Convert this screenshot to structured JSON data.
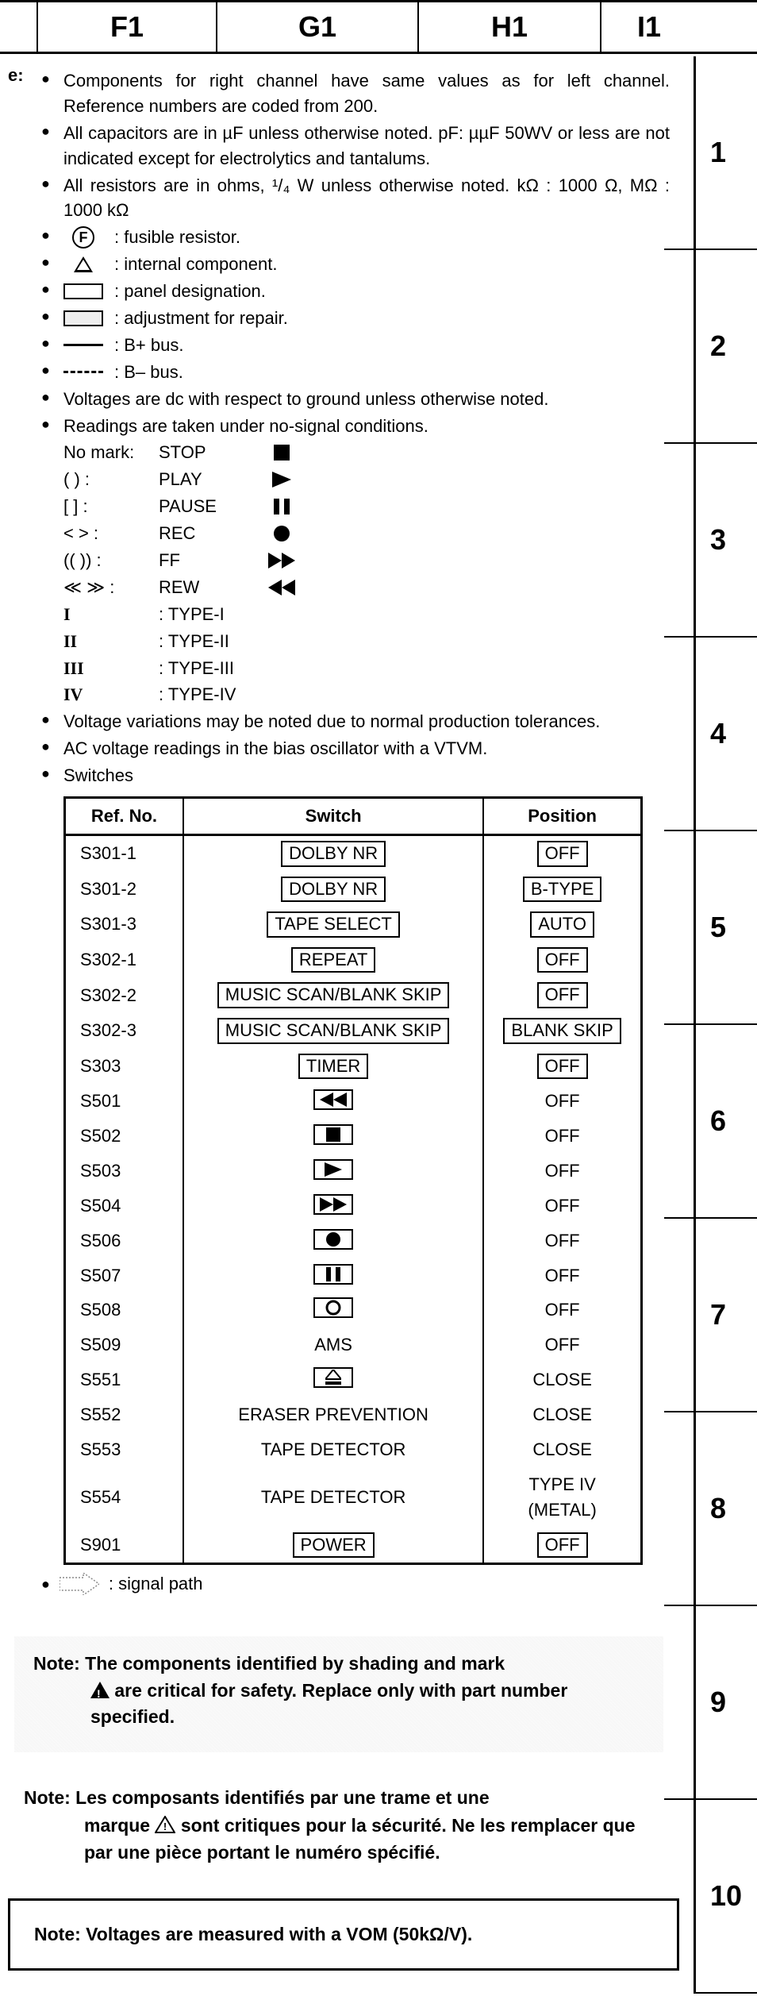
{
  "header": {
    "F": "F1",
    "G": "G1",
    "H": "H1",
    "I": "I1"
  },
  "ruler": [
    "1",
    "2",
    "3",
    "4",
    "5",
    "6",
    "7",
    "8",
    "9",
    "10"
  ],
  "notePrefix": "e:",
  "bullets": {
    "components": "Components for right channel have same values as for left channel. Reference numbers are coded from 200.",
    "capacitors": "All capacitors are in µF unless otherwise noted. pF: µµF 50WV or less are not indicated except for electrolytics and tantalums.",
    "resistors": "All resistors are in ohms, ¹/₄ W unless otherwise noted. kΩ : 1000 Ω, MΩ : 1000 kΩ",
    "fusible": ": fusible resistor.",
    "internal": ": internal component.",
    "panel": ": panel designation.",
    "adjust": ": adjustment for repair.",
    "bplus": ": B+ bus.",
    "bminus": ": B– bus.",
    "voltages": "Voltages are dc with respect to ground unless otherwise noted.",
    "readingsIntro": "Readings are taken under no-signal conditions.",
    "voltageVar": "Voltage variations may be noted due to normal production tolerances.",
    "acVoltage": "AC voltage readings in the bias oscillator with a VTVM.",
    "switches": "Switches",
    "signalPath": ": signal path"
  },
  "readings": {
    "noMark": {
      "mark": "No mark:",
      "label": "STOP"
    },
    "play": {
      "mark": "(      ) :",
      "label": "PLAY"
    },
    "pause": {
      "mark": "[      ] :",
      "label": "PAUSE"
    },
    "rec": {
      "mark": "<   > :",
      "label": "REC"
    },
    "ff": {
      "mark": "((    )) :",
      "label": "FF"
    },
    "rew": {
      "mark": "≪  ≫ :",
      "label": "REW"
    },
    "t1": {
      "mark": "I",
      "label": ": TYPE-I"
    },
    "t2": {
      "mark": "II",
      "label": ": TYPE-II"
    },
    "t3": {
      "mark": "III",
      "label": ": TYPE-III"
    },
    "t4": {
      "mark": "IV",
      "label": ": TYPE-IV"
    }
  },
  "table": {
    "headers": {
      "ref": "Ref. No.",
      "switch": "Switch",
      "position": "Position"
    },
    "rows": [
      {
        "ref": "S301-1",
        "switch": "DOLBY NR",
        "switchBoxed": true,
        "pos": "OFF",
        "posBoxed": true
      },
      {
        "ref": "S301-2",
        "switch": "DOLBY NR",
        "switchBoxed": true,
        "pos": "B-TYPE",
        "posBoxed": true
      },
      {
        "ref": "S301-3",
        "switch": "TAPE SELECT",
        "switchBoxed": true,
        "pos": "AUTO",
        "posBoxed": true
      },
      {
        "ref": "S302-1",
        "switch": "REPEAT",
        "switchBoxed": true,
        "pos": "OFF",
        "posBoxed": true
      },
      {
        "ref": "S302-2",
        "switch": "MUSIC SCAN/BLANK SKIP",
        "switchBoxed": true,
        "pos": "OFF",
        "posBoxed": true
      },
      {
        "ref": "S302-3",
        "switch": "MUSIC SCAN/BLANK SKIP",
        "switchBoxed": true,
        "pos": "BLANK SKIP",
        "posBoxed": true
      },
      {
        "ref": "S303",
        "switch": "TIMER",
        "switchBoxed": true,
        "pos": "OFF",
        "posBoxed": true
      },
      {
        "ref": "S501",
        "icon": "rew",
        "pos": "OFF",
        "posBoxed": false
      },
      {
        "ref": "S502",
        "icon": "stop",
        "pos": "OFF",
        "posBoxed": false
      },
      {
        "ref": "S503",
        "icon": "play",
        "pos": "OFF",
        "posBoxed": false
      },
      {
        "ref": "S504",
        "icon": "ff",
        "pos": "OFF",
        "posBoxed": false
      },
      {
        "ref": "S506",
        "icon": "rec",
        "pos": "OFF",
        "posBoxed": false
      },
      {
        "ref": "S507",
        "icon": "pause",
        "pos": "OFF",
        "posBoxed": false
      },
      {
        "ref": "S508",
        "icon": "circle",
        "pos": "OFF",
        "posBoxed": false
      },
      {
        "ref": "S509",
        "switch": "AMS",
        "switchBoxed": false,
        "pos": "OFF",
        "posBoxed": false
      },
      {
        "ref": "S551",
        "icon": "eject",
        "pos": "CLOSE",
        "posBoxed": false
      },
      {
        "ref": "S552",
        "switch": "ERASER PREVENTION",
        "switchBoxed": false,
        "pos": "CLOSE",
        "posBoxed": false
      },
      {
        "ref": "S553",
        "switch": "TAPE DETECTOR",
        "switchBoxed": false,
        "pos": "CLOSE",
        "posBoxed": false
      },
      {
        "ref": "S554",
        "switch": "TAPE DETECTOR",
        "switchBoxed": false,
        "pos": "TYPE IV (METAL)",
        "posBoxed": false
      },
      {
        "ref": "S901",
        "switch": "POWER",
        "switchBoxed": true,
        "pos": "OFF",
        "posBoxed": true
      }
    ]
  },
  "safetyNote": {
    "line1": "Note: The components identified by shading and mark",
    "line2": "are critical for safety.   Replace only with part number specified."
  },
  "frenchNote": {
    "line1": "Note: Les composants identifiés par une trame et une",
    "line2": "marque",
    "line3": "sont critiques pour la sécurité.  Ne les remplacer que par une pièce portant le numéro spécifié."
  },
  "vomNote": "Note:  Voltages are measured with a VOM (50kΩ/V).",
  "rulerHeights": [
    244,
    244,
    244,
    244,
    244,
    244,
    244,
    244,
    244,
    244
  ]
}
